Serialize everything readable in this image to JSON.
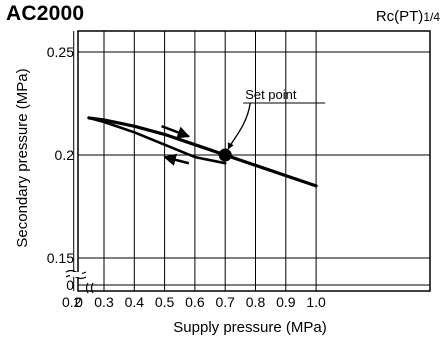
{
  "header": {
    "title": "AC2000",
    "fitting_main": "Rc(PT)",
    "fitting_sub": "1/4"
  },
  "chart_data": {
    "type": "line",
    "title": "AC2000",
    "xlabel": "Supply pressure (MPa)",
    "ylabel": "Secondary pressure (MPa)",
    "xlim": [
      0.2,
      1.05
    ],
    "ylim": [
      0.14,
      0.26
    ],
    "x_ticks": [
      "0",
      "0.2",
      "0.3",
      "0.4",
      "0.5",
      "0.6",
      "0.7",
      "0.8",
      "0.9",
      "1.0"
    ],
    "y_ticks": [
      "0",
      "0.15",
      "0.2",
      "0.25"
    ],
    "grid": true,
    "axis_break": true,
    "series": [
      {
        "x": [
          0.25,
          0.3,
          0.4,
          0.5,
          0.6,
          0.7,
          0.8,
          0.9,
          1.0
        ],
        "y": [
          0.218,
          0.217,
          0.214,
          0.21,
          0.205,
          0.2,
          0.195,
          0.19,
          0.185
        ]
      },
      {
        "x": [
          0.25,
          0.3,
          0.4,
          0.5,
          0.6,
          0.7
        ],
        "y": [
          0.218,
          0.216,
          0.211,
          0.205,
          0.199,
          0.196
        ]
      }
    ],
    "set_point": {
      "x": 0.7,
      "y": 0.2,
      "label": "Set point"
    },
    "arrows": [
      {
        "direction": "increasing",
        "from": [
          0.49,
          0.214
        ],
        "to": [
          0.58,
          0.209
        ]
      },
      {
        "direction": "decreasing",
        "from": [
          0.58,
          0.196
        ],
        "to": [
          0.5,
          0.199
        ]
      }
    ]
  }
}
